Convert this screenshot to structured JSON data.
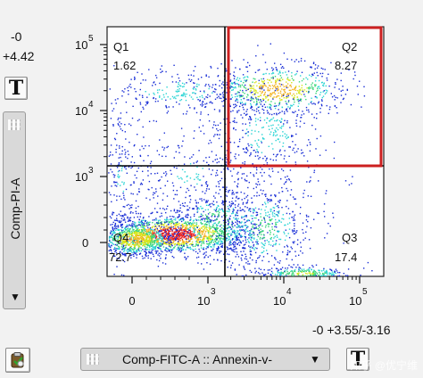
{
  "readouts": {
    "top_left_1": "-0",
    "top_left_2": "+4.42",
    "bottom_right": "-0 +3.55/-3.16"
  },
  "buttons": {
    "text_tool": "T"
  },
  "y_axis_selector": {
    "label": "Comp-PI-A"
  },
  "x_axis_selector": {
    "label": "Comp-FITC-A :: Annexin-v-"
  },
  "watermark": "知乎 @优宁维",
  "chart_data": {
    "type": "scatter",
    "plot_style": "density pseudocolor dot plot",
    "x_axis": {
      "scale": "biexponential",
      "label": "",
      "ticks": [
        {
          "label": "0",
          "value": 0
        },
        {
          "label": "10",
          "exp": "3",
          "value": 1000
        },
        {
          "label": "10",
          "exp": "4",
          "value": 10000
        },
        {
          "label": "10",
          "exp": "5",
          "value": 100000
        }
      ]
    },
    "y_axis": {
      "scale": "biexponential",
      "label": "",
      "ticks": [
        {
          "label": "0",
          "value": 0
        },
        {
          "label": "10",
          "exp": "3",
          "value": 1000
        },
        {
          "label": "10",
          "exp": "4",
          "value": 10000
        },
        {
          "label": "10",
          "exp": "5",
          "value": 100000
        }
      ]
    },
    "quadrants": [
      {
        "name": "Q1",
        "percent": "1.62",
        "position": "top-left"
      },
      {
        "name": "Q2",
        "percent": "8.27",
        "position": "top-right",
        "highlighted": true
      },
      {
        "name": "Q3",
        "percent": "17.4",
        "position": "bottom-right"
      },
      {
        "name": "Q4",
        "percent": "72.7",
        "position": "bottom-left"
      }
    ],
    "gate_color": "#cc1f1f",
    "grid": false
  },
  "colors": {
    "background": "#f2f2f2",
    "plot_bg": "#ffffff",
    "highlight_gate": "#cc1f1f",
    "density_low": "#1a2fd6",
    "density_mid": "#2ad4d4",
    "density_high": "#e81c1c"
  }
}
